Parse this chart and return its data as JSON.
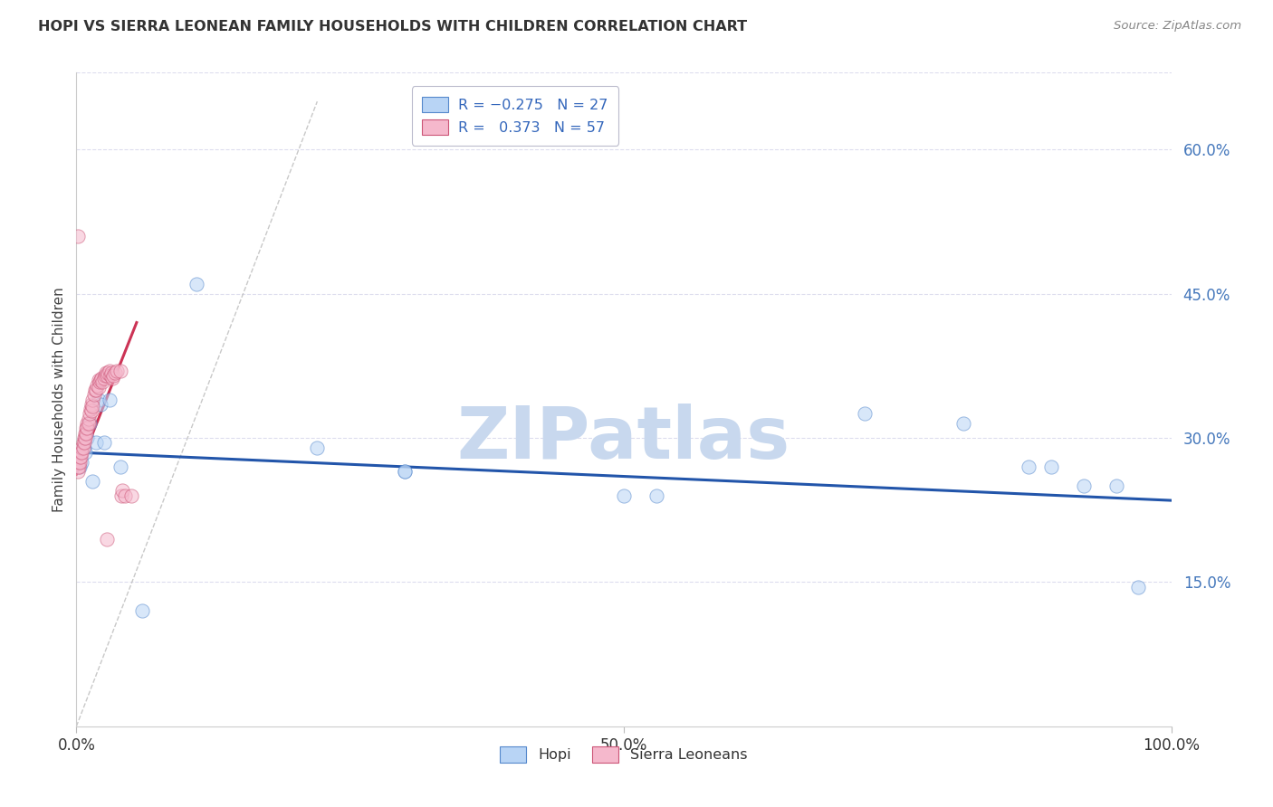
{
  "title": "HOPI VS SIERRA LEONEAN FAMILY HOUSEHOLDS WITH CHILDREN CORRELATION CHART",
  "source": "Source: ZipAtlas.com",
  "ylabel": "Family Households with Children",
  "xlim": [
    0.0,
    1.0
  ],
  "ylim": [
    0.0,
    0.68
  ],
  "yticks": [
    0.15,
    0.3,
    0.45,
    0.6
  ],
  "ytick_labels": [
    "15.0%",
    "30.0%",
    "45.0%",
    "60.0%"
  ],
  "xtick_vals": [
    0.0,
    0.5,
    1.0
  ],
  "xtick_labels": [
    "0.0%",
    "50.0%",
    "100.0%"
  ],
  "hopi_color": "#b8d4f5",
  "sierra_color": "#f5b8cc",
  "hopi_edge_color": "#5588cc",
  "sierra_edge_color": "#cc5577",
  "trend_hopi_color": "#2255aa",
  "trend_sierra_color": "#cc3355",
  "background_color": "#ffffff",
  "grid_color": "#ddddee",
  "watermark": "ZIPatlas",
  "watermark_color": "#c8d8ee",
  "dot_size": 120,
  "dot_alpha": 0.55,
  "line_width": 2.2,
  "hopi_x": [
    0.003,
    0.005,
    0.007,
    0.008,
    0.01,
    0.012,
    0.015,
    0.018,
    0.02,
    0.022,
    0.025,
    0.03,
    0.04,
    0.06,
    0.11,
    0.22,
    0.3,
    0.3,
    0.5,
    0.53,
    0.72,
    0.81,
    0.87,
    0.89,
    0.92,
    0.95,
    0.97
  ],
  "hopi_y": [
    0.27,
    0.275,
    0.29,
    0.285,
    0.3,
    0.315,
    0.255,
    0.295,
    0.34,
    0.335,
    0.295,
    0.34,
    0.27,
    0.12,
    0.46,
    0.29,
    0.265,
    0.265,
    0.24,
    0.24,
    0.325,
    0.315,
    0.27,
    0.27,
    0.25,
    0.25,
    0.145
  ],
  "sierra_x": [
    0.001,
    0.001,
    0.002,
    0.002,
    0.003,
    0.003,
    0.004,
    0.004,
    0.005,
    0.005,
    0.006,
    0.006,
    0.007,
    0.007,
    0.008,
    0.008,
    0.009,
    0.009,
    0.01,
    0.01,
    0.011,
    0.011,
    0.012,
    0.013,
    0.014,
    0.014,
    0.015,
    0.015,
    0.016,
    0.017,
    0.018,
    0.019,
    0.02,
    0.02,
    0.021,
    0.022,
    0.023,
    0.024,
    0.025,
    0.026,
    0.027,
    0.028,
    0.029,
    0.03,
    0.031,
    0.032,
    0.033,
    0.034,
    0.035,
    0.037,
    0.04,
    0.041,
    0.042,
    0.044,
    0.05,
    0.001,
    0.028
  ],
  "sierra_y": [
    0.27,
    0.265,
    0.275,
    0.27,
    0.28,
    0.275,
    0.285,
    0.28,
    0.29,
    0.285,
    0.295,
    0.29,
    0.3,
    0.295,
    0.305,
    0.3,
    0.31,
    0.305,
    0.315,
    0.31,
    0.32,
    0.315,
    0.325,
    0.33,
    0.335,
    0.328,
    0.34,
    0.333,
    0.345,
    0.35,
    0.35,
    0.355,
    0.36,
    0.353,
    0.358,
    0.36,
    0.362,
    0.358,
    0.362,
    0.365,
    0.368,
    0.365,
    0.368,
    0.37,
    0.365,
    0.368,
    0.362,
    0.365,
    0.368,
    0.37,
    0.37,
    0.24,
    0.245,
    0.24,
    0.24,
    0.51,
    0.195
  ],
  "ref_line_x": [
    0.0,
    0.22
  ],
  "ref_line_y": [
    0.0,
    0.65
  ],
  "hopi_trend_x": [
    0.0,
    1.0
  ],
  "hopi_trend_y": [
    0.285,
    0.235
  ],
  "sierra_trend_x": [
    0.0,
    0.055
  ],
  "sierra_trend_y": [
    0.262,
    0.42
  ]
}
